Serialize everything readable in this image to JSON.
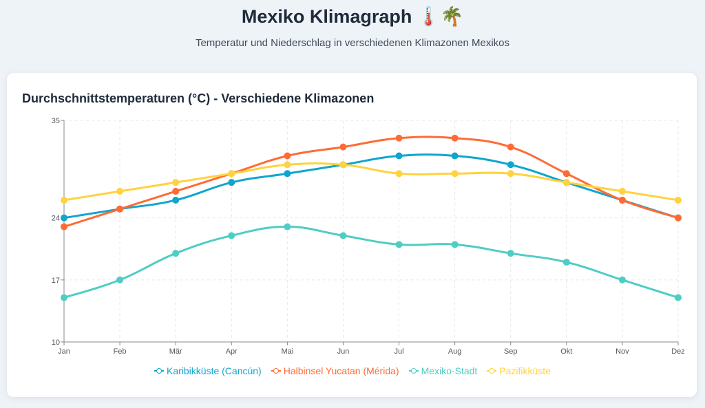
{
  "header": {
    "title": "Mexiko Klimagraph 🌡️🌴",
    "subtitle": "Temperatur und Niederschlag in verschiedenen Klimazonen Mexikos"
  },
  "chart_data": {
    "type": "line",
    "title": "Durchschnittstemperaturen (°C) - Verschiedene Klimazonen",
    "xlabel": "",
    "ylabel": "",
    "categories": [
      "Jan",
      "Feb",
      "Mär",
      "Apr",
      "Mai",
      "Jun",
      "Jul",
      "Aug",
      "Sep",
      "Okt",
      "Nov",
      "Dez"
    ],
    "ylim": [
      10,
      35
    ],
    "yticks": [
      10,
      17,
      24,
      35
    ],
    "grid": true,
    "legend_position": "bottom",
    "series": [
      {
        "name": "Karibikküste (Cancún)",
        "color": "#10a5cf",
        "values": [
          24,
          25,
          26,
          28,
          29,
          30,
          31,
          31,
          30,
          28,
          26,
          24
        ]
      },
      {
        "name": "Halbinsel Yucatan (Mérida)",
        "color": "#ff6b35",
        "values": [
          23,
          25,
          27,
          29,
          31,
          32,
          33,
          33,
          32,
          29,
          26,
          24
        ]
      },
      {
        "name": "Mexiko-Stadt",
        "color": "#4ecdc4",
        "values": [
          15,
          17,
          20,
          22,
          23,
          22,
          21,
          21,
          20,
          19,
          17,
          15
        ]
      },
      {
        "name": "Pazifikküste",
        "color": "#ffd23f",
        "values": [
          26,
          27,
          28,
          29,
          30,
          30,
          29,
          29,
          29,
          28,
          27,
          26
        ]
      }
    ]
  }
}
